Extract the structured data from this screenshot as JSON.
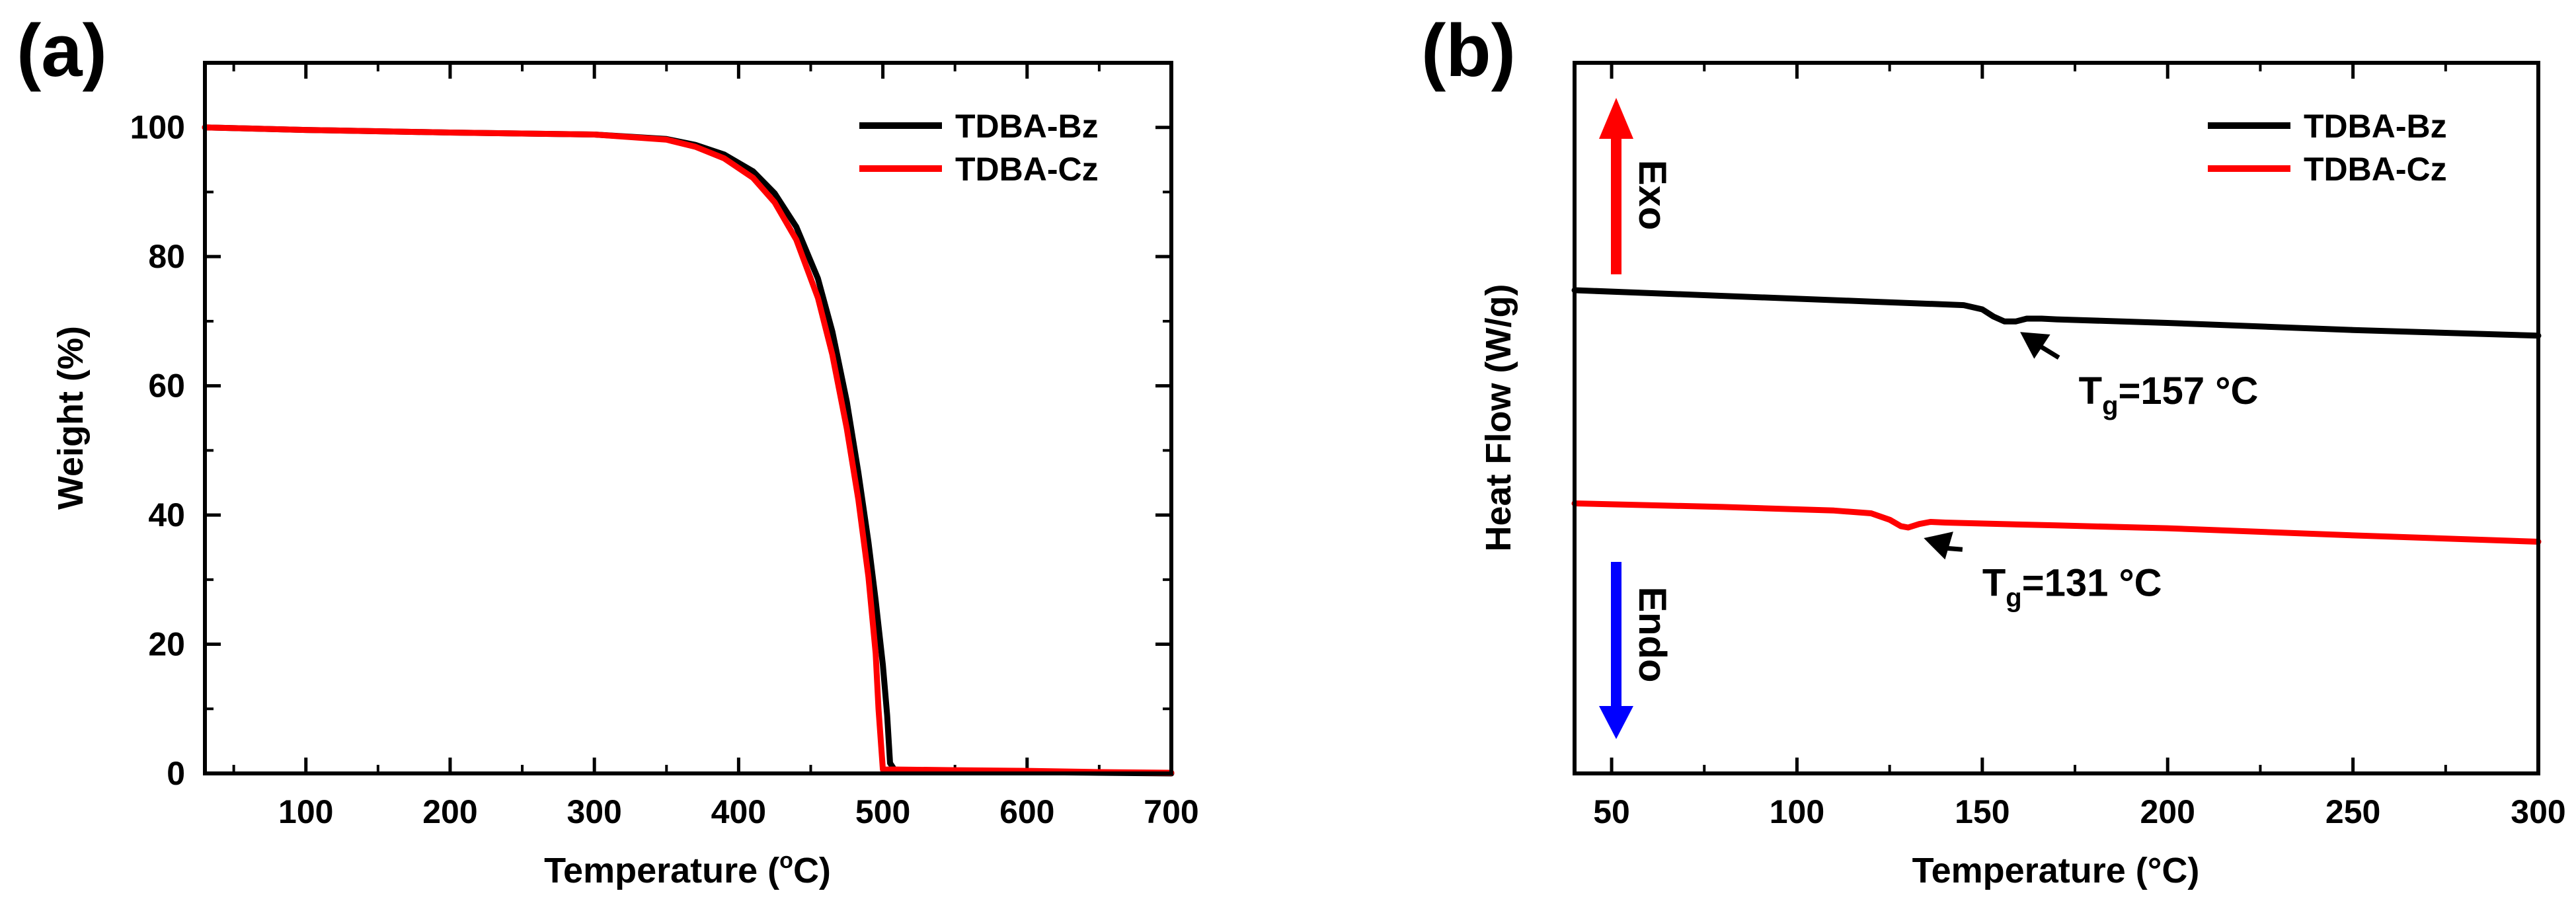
{
  "figure": {
    "panels": [
      "(a)",
      "(b)"
    ]
  },
  "colors": {
    "series1": "#000000",
    "series2": "#ff0000",
    "exo": "#ff0000",
    "endo": "#0000ff"
  },
  "chart_data": [
    {
      "id": "a",
      "panel_label": "(a)",
      "type": "line",
      "xlabel": "Temperature (",
      "xlabel_sup": "o",
      "xlabel_end": "C)",
      "ylabel": "Weight (%)",
      "xlim": [
        30,
        700
      ],
      "ylim": [
        0,
        110
      ],
      "xticks": [
        100,
        200,
        300,
        400,
        500,
        600,
        700
      ],
      "xtick_labels": [
        "100",
        "200",
        "300",
        "400",
        "500",
        "600",
        "700"
      ],
      "yticks": [
        0,
        20,
        40,
        60,
        80,
        100
      ],
      "ytick_labels": [
        "0",
        "20",
        "40",
        "60",
        "80",
        "100"
      ],
      "legend": [
        "TDBA-Bz",
        "TDBA-Cz"
      ],
      "legend_position": "top-right",
      "series": [
        {
          "name": "TDBA-Bz",
          "color": "#000000",
          "x": [
            30,
            100,
            200,
            300,
            350,
            370,
            390,
            410,
            425,
            440,
            455,
            465,
            475,
            483,
            490,
            495,
            500,
            503,
            505,
            508,
            515,
            550,
            600,
            650,
            700
          ],
          "y": [
            100,
            99.6,
            99.2,
            98.9,
            98.2,
            97.3,
            95.8,
            93.2,
            89.8,
            84.6,
            76.6,
            68.4,
            57.6,
            46.6,
            35.8,
            26.8,
            16.8,
            9.0,
            1.6,
            0.6,
            0.5,
            0.3,
            0.2,
            0.1,
            0.0
          ]
        },
        {
          "name": "TDBA-Cz",
          "color": "#ff0000",
          "x": [
            30,
            100,
            200,
            300,
            350,
            370,
            390,
            410,
            425,
            440,
            455,
            465,
            475,
            483,
            490,
            495,
            497,
            500,
            503,
            510,
            550,
            600,
            650,
            700
          ],
          "y": [
            100,
            99.6,
            99.2,
            98.9,
            98.1,
            97.0,
            95.2,
            92.2,
            88.4,
            82.6,
            73.6,
            64.8,
            53.4,
            42.4,
            30.4,
            18.6,
            10.0,
            0.6,
            0.6,
            0.6,
            0.5,
            0.4,
            0.2,
            0.1
          ]
        }
      ]
    },
    {
      "id": "b",
      "panel_label": "(b)",
      "type": "line",
      "xlabel": "Temperature (°C)",
      "ylabel": "Heat Flow (W/g)",
      "xlim": [
        40,
        300
      ],
      "ylim": [
        0,
        100
      ],
      "xticks": [
        50,
        100,
        150,
        200,
        250,
        300
      ],
      "xtick_labels": [
        "50",
        "100",
        "150",
        "200",
        "250",
        "300"
      ],
      "yticks": [],
      "legend": [
        "TDBA-Bz",
        "TDBA-Cz"
      ],
      "legend_position": "top-right",
      "series": [
        {
          "name": "TDBA-Bz",
          "color": "#000000",
          "x": [
            40,
            80,
            120,
            145,
            150,
            153,
            156,
            159,
            162,
            166,
            170,
            200,
            250,
            300
          ],
          "y": [
            68.0,
            67.2,
            66.4,
            65.9,
            65.3,
            64.3,
            63.6,
            63.6,
            64.0,
            64.0,
            63.9,
            63.4,
            62.4,
            61.6
          ]
        },
        {
          "name": "TDBA-Cz",
          "color": "#ff0000",
          "x": [
            40,
            80,
            110,
            120,
            125,
            128,
            130,
            133,
            136,
            140,
            170,
            200,
            250,
            300
          ],
          "y": [
            38.0,
            37.5,
            37.0,
            36.6,
            35.7,
            34.8,
            34.6,
            35.1,
            35.4,
            35.3,
            34.9,
            34.5,
            33.5,
            32.6
          ]
        }
      ],
      "annotations": [
        {
          "label": "T",
          "sub": "g",
          "value": "=157 °C",
          "x": 157,
          "y": 63.6,
          "text_x": 176,
          "text_y": 52
        },
        {
          "label": "T",
          "sub": "g",
          "value": "=131 °C",
          "x": 131,
          "y": 34.6,
          "text_x": 150,
          "text_y": 25
        }
      ],
      "direction_labels": [
        {
          "text": "Exo",
          "direction": "up",
          "color": "#ff0000"
        },
        {
          "text": "Endo",
          "direction": "down",
          "color": "#0000ff"
        }
      ]
    }
  ]
}
